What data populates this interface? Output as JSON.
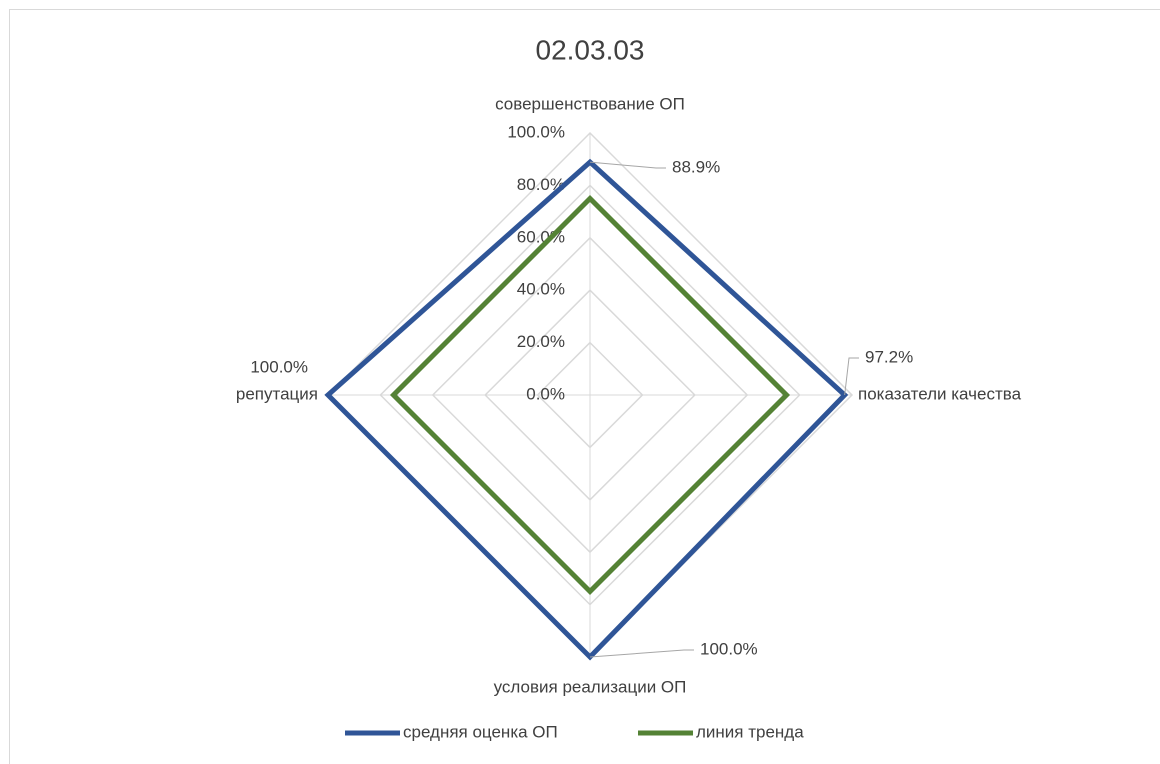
{
  "chart_data": {
    "type": "radar",
    "title": "02.03.03",
    "categories": [
      "совершенствование ОП",
      "показатели качества",
      "условия реализации ОП",
      "репутация"
    ],
    "series": [
      {
        "name": "средняя оценка ОП",
        "color": "#2f5597",
        "values": [
          88.9,
          97.2,
          100,
          100
        ],
        "value_labels": [
          "88.9%",
          "97.2%",
          "100.0%",
          "100.0%"
        ]
      },
      {
        "name": "линия тренда",
        "color": "#548235",
        "values": [
          75,
          75,
          75,
          75
        ]
      }
    ],
    "ylim": [
      0,
      100
    ],
    "yticks": [
      {
        "value": 0,
        "label": "0.0%"
      },
      {
        "value": 20,
        "label": "20.0%"
      },
      {
        "value": 40,
        "label": "40.0%"
      },
      {
        "value": 60,
        "label": "60.0%"
      },
      {
        "value": 80,
        "label": "80.0%"
      },
      {
        "value": 100,
        "label": "100.0%"
      }
    ],
    "grid": true,
    "legend": "bottom"
  }
}
